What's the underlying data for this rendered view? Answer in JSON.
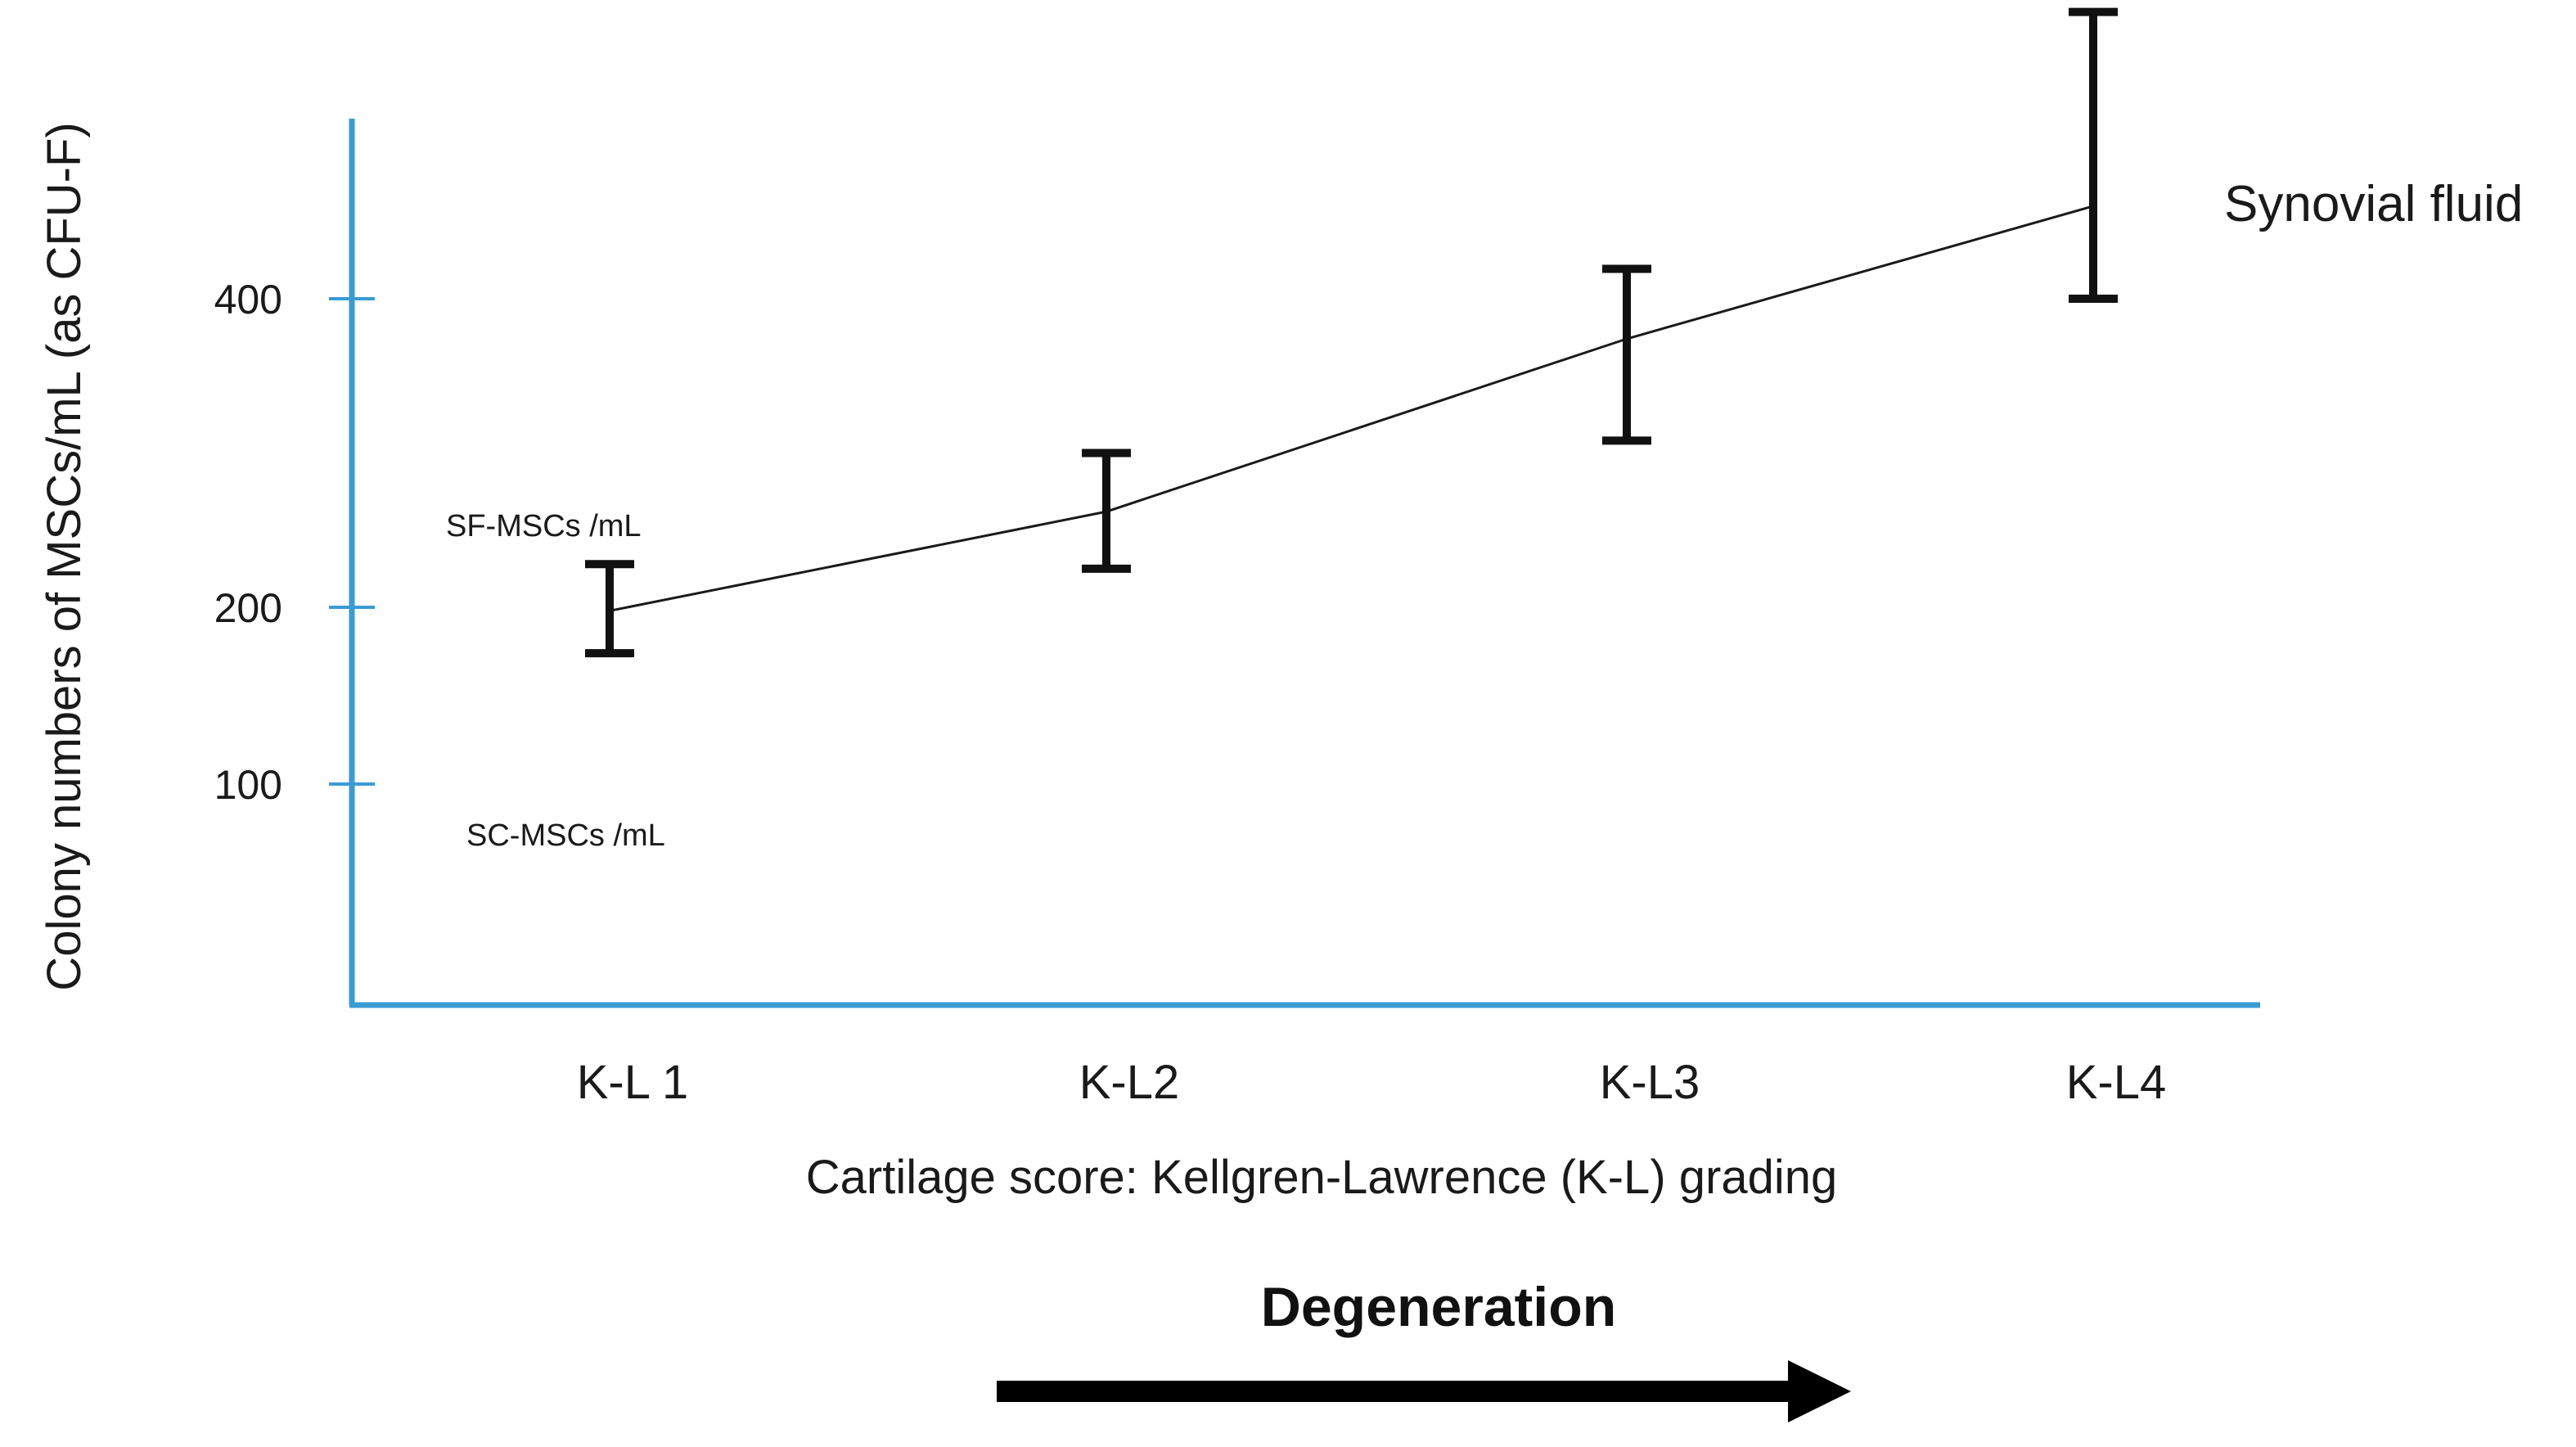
{
  "chart_data": {
    "type": "line",
    "title": "",
    "xlabel": "Cartilage score: Kellgren-Lawrence (K-L) grading",
    "ylabel": "Colony numbers of MSCs/mL (as CFU-F)",
    "categories": [
      "K-L 1",
      "K-L2",
      "K-L3",
      "K-L4"
    ],
    "y_ticks": [
      {
        "value": 100,
        "label": "100"
      },
      {
        "value": 200,
        "label": "200"
      },
      {
        "value": 400,
        "label": "400"
      }
    ],
    "series": [
      {
        "name": "Synovial fluid",
        "values": [
          198,
          262,
          374,
          462
        ],
        "err_low": [
          174,
          225,
          308,
          400
        ],
        "err_high": [
          228,
          300,
          420,
          592
        ]
      }
    ],
    "annotations": [
      {
        "id": "sf",
        "text": "SF-MSCs /mL"
      },
      {
        "id": "sc",
        "text": "SC-MSCs /mL"
      }
    ],
    "arrow_label": "Degeneration",
    "colors": {
      "axis": "#3a9bd5",
      "line": "#1a1a1a",
      "error_bar": "#111111",
      "arrow": "#000000"
    }
  }
}
